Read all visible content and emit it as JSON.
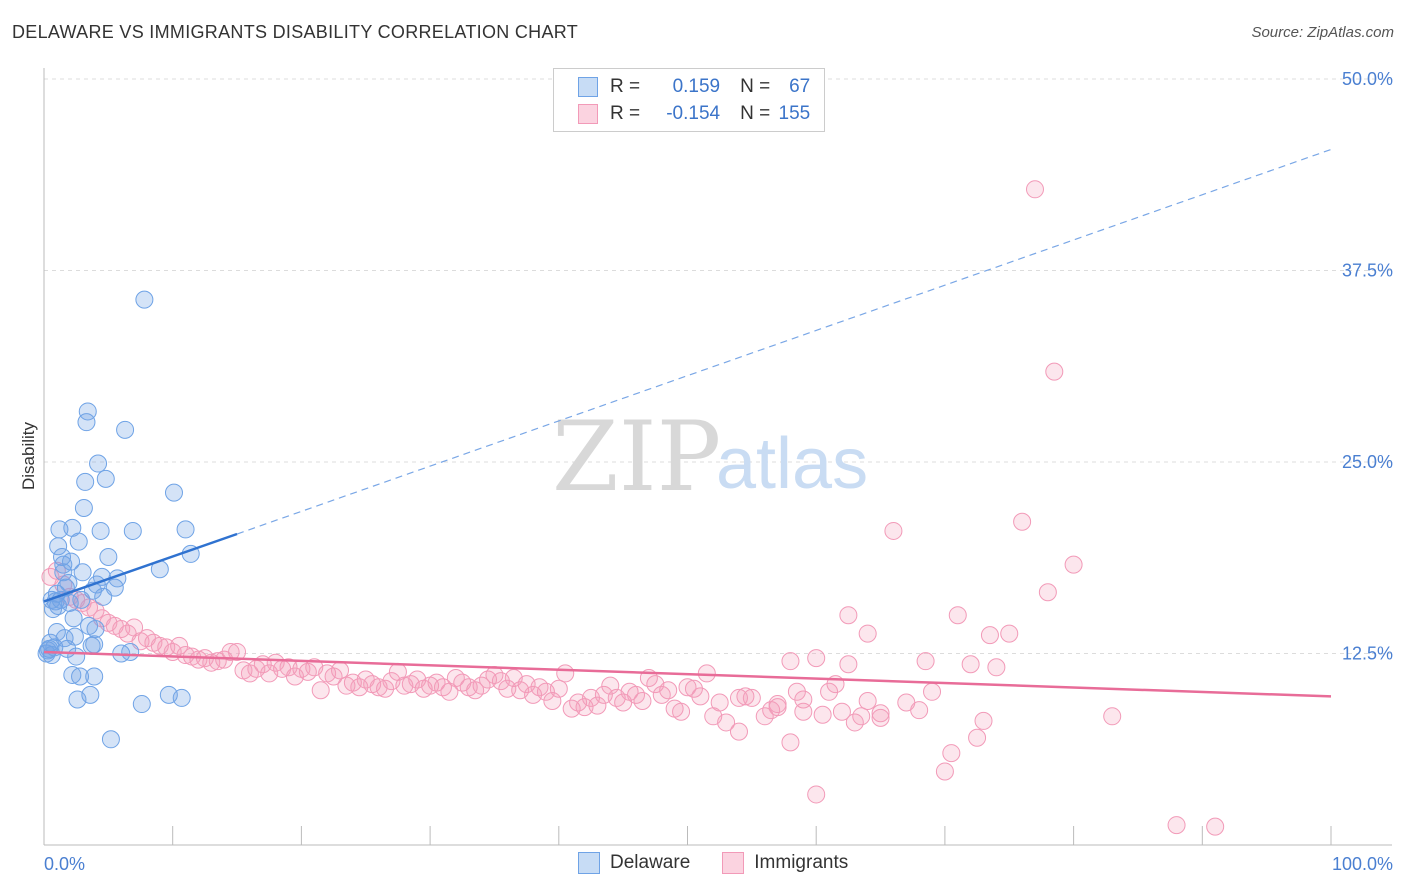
{
  "header": {
    "title": "DELAWARE VS IMMIGRANTS DISABILITY CORRELATION CHART",
    "source": "Source: ZipAtlas.com"
  },
  "legend": {
    "r_label": "R =",
    "n_label": "N =",
    "rows": [
      {
        "name": "Delaware",
        "r": "0.159",
        "n": "67",
        "color": "#6fa3e6"
      },
      {
        "name": "Immigrants",
        "r": "-0.154",
        "n": "155",
        "color": "#f29ab8"
      }
    ]
  },
  "watermark": {
    "zip": "ZIP",
    "atlas": "atlas"
  },
  "chart_data": {
    "type": "scatter",
    "title": "DELAWARE VS IMMIGRANTS DISABILITY CORRELATION CHART",
    "xlabel": "",
    "ylabel": "Disability",
    "xlim": [
      0,
      100
    ],
    "ylim": [
      0,
      50
    ],
    "x_tick_labels": [
      "0.0%",
      "100.0%"
    ],
    "y_ticks": [
      12.5,
      25.0,
      37.5,
      50.0
    ],
    "y_tick_labels": [
      "12.5%",
      "25.0%",
      "37.5%",
      "50.0%"
    ],
    "grid": true,
    "legend_position": "top-center",
    "series": [
      {
        "name": "Delaware",
        "color": "#6fa3e6",
        "points": [
          [
            0.3,
            12.7
          ],
          [
            0.5,
            13.2
          ],
          [
            0.6,
            12.4
          ],
          [
            0.8,
            12.9
          ],
          [
            0.9,
            15.9
          ],
          [
            1.0,
            16.4
          ],
          [
            1.1,
            15.6
          ],
          [
            1.2,
            20.6
          ],
          [
            1.4,
            18.8
          ],
          [
            1.5,
            17.8
          ],
          [
            1.6,
            13.5
          ],
          [
            1.7,
            16.8
          ],
          [
            1.8,
            12.8
          ],
          [
            2.0,
            15.8
          ],
          [
            2.1,
            18.5
          ],
          [
            2.2,
            20.7
          ],
          [
            2.3,
            14.8
          ],
          [
            2.5,
            12.3
          ],
          [
            2.6,
            9.5
          ],
          [
            2.7,
            19.8
          ],
          [
            2.8,
            11.0
          ],
          [
            3.0,
            17.8
          ],
          [
            3.1,
            22.0
          ],
          [
            3.2,
            23.7
          ],
          [
            3.3,
            27.6
          ],
          [
            3.4,
            28.3
          ],
          [
            3.5,
            14.3
          ],
          [
            3.6,
            9.8
          ],
          [
            3.7,
            13.0
          ],
          [
            3.8,
            16.6
          ],
          [
            3.9,
            11.0
          ],
          [
            4.0,
            14.1
          ],
          [
            4.2,
            24.9
          ],
          [
            4.4,
            20.5
          ],
          [
            4.5,
            17.5
          ],
          [
            4.6,
            16.2
          ],
          [
            4.8,
            23.9
          ],
          [
            5.0,
            18.8
          ],
          [
            5.2,
            6.9
          ],
          [
            5.5,
            16.8
          ],
          [
            6.0,
            12.5
          ],
          [
            6.3,
            27.1
          ],
          [
            6.9,
            20.5
          ],
          [
            7.8,
            35.6
          ],
          [
            9.0,
            18.0
          ],
          [
            9.7,
            9.8
          ],
          [
            10.1,
            23.0
          ],
          [
            10.7,
            9.6
          ],
          [
            11.0,
            20.6
          ],
          [
            11.4,
            19.0
          ],
          [
            7.6,
            9.2
          ],
          [
            1.3,
            16.0
          ],
          [
            0.4,
            12.8
          ],
          [
            2.4,
            13.6
          ],
          [
            1.9,
            17.1
          ],
          [
            0.7,
            15.4
          ],
          [
            3.9,
            13.1
          ],
          [
            5.7,
            17.4
          ],
          [
            6.7,
            12.6
          ],
          [
            2.9,
            16.0
          ],
          [
            1.0,
            13.9
          ],
          [
            0.2,
            12.5
          ],
          [
            1.5,
            18.3
          ],
          [
            4.1,
            17.0
          ],
          [
            0.6,
            16.0
          ],
          [
            2.2,
            11.1
          ],
          [
            1.1,
            19.5
          ]
        ],
        "trend_solid": [
          [
            0,
            15.9
          ],
          [
            15,
            20.3
          ]
        ],
        "trend_dashed": [
          [
            15,
            20.3
          ],
          [
            100,
            45.4
          ]
        ]
      },
      {
        "name": "Immigrants",
        "color": "#f29ab8",
        "points": [
          [
            0.5,
            17.5
          ],
          [
            1.0,
            17.9
          ],
          [
            1.5,
            17.0
          ],
          [
            2.0,
            16.2
          ],
          [
            2.5,
            16.0
          ],
          [
            3.0,
            15.8
          ],
          [
            3.5,
            15.5
          ],
          [
            4.0,
            15.3
          ],
          [
            4.5,
            14.8
          ],
          [
            5.0,
            14.5
          ],
          [
            5.5,
            14.3
          ],
          [
            6.0,
            14.1
          ],
          [
            6.5,
            13.8
          ],
          [
            7.0,
            14.2
          ],
          [
            7.5,
            13.3
          ],
          [
            8.0,
            13.5
          ],
          [
            8.5,
            13.2
          ],
          [
            9.0,
            13.0
          ],
          [
            9.5,
            12.9
          ],
          [
            10.0,
            12.6
          ],
          [
            10.5,
            13.0
          ],
          [
            11.0,
            12.4
          ],
          [
            11.5,
            12.3
          ],
          [
            12.0,
            12.1
          ],
          [
            12.5,
            12.2
          ],
          [
            13.0,
            11.9
          ],
          [
            13.5,
            12.0
          ],
          [
            14.0,
            12.1
          ],
          [
            14.5,
            12.6
          ],
          [
            15.0,
            12.6
          ],
          [
            15.5,
            11.4
          ],
          [
            16.0,
            11.2
          ],
          [
            16.5,
            11.5
          ],
          [
            17.0,
            11.8
          ],
          [
            17.5,
            11.2
          ],
          [
            18.0,
            11.9
          ],
          [
            18.5,
            11.5
          ],
          [
            19.0,
            11.6
          ],
          [
            19.5,
            11.0
          ],
          [
            20.0,
            11.5
          ],
          [
            20.5,
            11.3
          ],
          [
            21.0,
            11.6
          ],
          [
            21.5,
            10.1
          ],
          [
            22.0,
            11.2
          ],
          [
            22.5,
            11.0
          ],
          [
            23.0,
            11.4
          ],
          [
            23.5,
            10.4
          ],
          [
            24.0,
            10.6
          ],
          [
            24.5,
            10.3
          ],
          [
            25.0,
            10.8
          ],
          [
            25.5,
            10.5
          ],
          [
            26.0,
            10.3
          ],
          [
            26.5,
            10.2
          ],
          [
            27.0,
            10.7
          ],
          [
            27.5,
            11.3
          ],
          [
            28.0,
            10.4
          ],
          [
            28.5,
            10.5
          ],
          [
            29.0,
            10.8
          ],
          [
            29.5,
            10.2
          ],
          [
            30.0,
            10.4
          ],
          [
            30.5,
            10.6
          ],
          [
            31.0,
            10.3
          ],
          [
            31.5,
            10.0
          ],
          [
            32.0,
            10.9
          ],
          [
            32.5,
            10.6
          ],
          [
            33.0,
            10.3
          ],
          [
            33.5,
            10.1
          ],
          [
            34.0,
            10.4
          ],
          [
            34.5,
            10.8
          ],
          [
            35.0,
            11.1
          ],
          [
            35.5,
            10.7
          ],
          [
            36.0,
            10.2
          ],
          [
            36.5,
            10.9
          ],
          [
            37.0,
            10.1
          ],
          [
            37.5,
            10.5
          ],
          [
            38.0,
            9.8
          ],
          [
            38.5,
            10.3
          ],
          [
            39.0,
            10.0
          ],
          [
            39.5,
            9.4
          ],
          [
            40.0,
            10.2
          ],
          [
            40.5,
            11.2
          ],
          [
            41.0,
            8.9
          ],
          [
            41.5,
            9.3
          ],
          [
            42.0,
            9.0
          ],
          [
            42.5,
            9.6
          ],
          [
            43.0,
            9.1
          ],
          [
            43.5,
            9.8
          ],
          [
            44.0,
            10.4
          ],
          [
            44.5,
            9.6
          ],
          [
            45.0,
            9.3
          ],
          [
            45.5,
            10.0
          ],
          [
            46.0,
            9.8
          ],
          [
            46.5,
            9.4
          ],
          [
            47.0,
            10.9
          ],
          [
            47.5,
            10.5
          ],
          [
            48.0,
            9.8
          ],
          [
            48.5,
            10.1
          ],
          [
            49.0,
            8.9
          ],
          [
            49.5,
            8.7
          ],
          [
            50.0,
            10.3
          ],
          [
            50.5,
            10.2
          ],
          [
            51.0,
            9.7
          ],
          [
            51.5,
            11.2
          ],
          [
            52.0,
            8.4
          ],
          [
            52.5,
            9.3
          ],
          [
            53.0,
            8.0
          ],
          [
            54.0,
            7.4
          ],
          [
            54.5,
            9.7
          ],
          [
            55.0,
            9.6
          ],
          [
            56.0,
            8.4
          ],
          [
            56.5,
            8.8
          ],
          [
            57.0,
            9.0
          ],
          [
            58.0,
            12.0
          ],
          [
            58.5,
            10.0
          ],
          [
            59.0,
            9.5
          ],
          [
            60.0,
            12.2
          ],
          [
            60.5,
            8.5
          ],
          [
            61.0,
            10.0
          ],
          [
            61.5,
            10.5
          ],
          [
            62.0,
            8.7
          ],
          [
            62.5,
            11.8
          ],
          [
            63.0,
            8.0
          ],
          [
            63.5,
            8.4
          ],
          [
            64.0,
            9.4
          ],
          [
            65.0,
            8.6
          ],
          [
            66.0,
            20.5
          ],
          [
            67.0,
            9.3
          ],
          [
            68.0,
            8.8
          ],
          [
            69.0,
            10.0
          ],
          [
            70.0,
            4.8
          ],
          [
            70.5,
            6.0
          ],
          [
            71.0,
            15.0
          ],
          [
            72.0,
            11.8
          ],
          [
            72.5,
            7.0
          ],
          [
            73.0,
            8.1
          ],
          [
            73.5,
            13.7
          ],
          [
            74.0,
            11.6
          ],
          [
            75.0,
            13.8
          ],
          [
            76.0,
            21.1
          ],
          [
            77.0,
            42.8
          ],
          [
            78.0,
            16.5
          ],
          [
            78.5,
            30.9
          ],
          [
            80.0,
            18.3
          ],
          [
            83.0,
            8.4
          ],
          [
            88.0,
            1.3
          ],
          [
            91.0,
            1.2
          ],
          [
            58.0,
            6.7
          ],
          [
            60.0,
            3.3
          ],
          [
            62.5,
            15.0
          ],
          [
            64.0,
            13.8
          ],
          [
            68.5,
            12.0
          ],
          [
            57.0,
            9.2
          ],
          [
            54.0,
            9.6
          ],
          [
            59.0,
            8.7
          ],
          [
            65.0,
            8.3
          ]
        ],
        "trend_solid": [
          [
            0,
            12.6
          ],
          [
            100,
            9.7
          ]
        ]
      }
    ]
  }
}
